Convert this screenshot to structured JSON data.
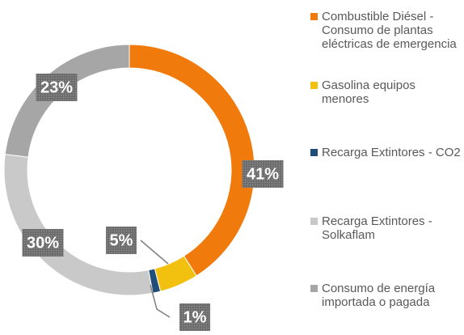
{
  "chart_data": {
    "type": "donut",
    "categories": [
      "Combustible Diésel - Consumo de plantas eléctricas de emergencia",
      "Gasolina equipos menores",
      "Recarga Extintores - CO2",
      "Recarga Extintores - Solkaflam",
      "Consumo de energía importada o pagada"
    ],
    "values": [
      41,
      5,
      1,
      30,
      23
    ],
    "value_labels": [
      "41%",
      "5%",
      "1%",
      "30%",
      "23%"
    ],
    "colors": [
      "#f07a0c",
      "#f2c10f",
      "#1f4e79",
      "#c9c9c9",
      "#a6a6a6"
    ],
    "legend": "right"
  }
}
